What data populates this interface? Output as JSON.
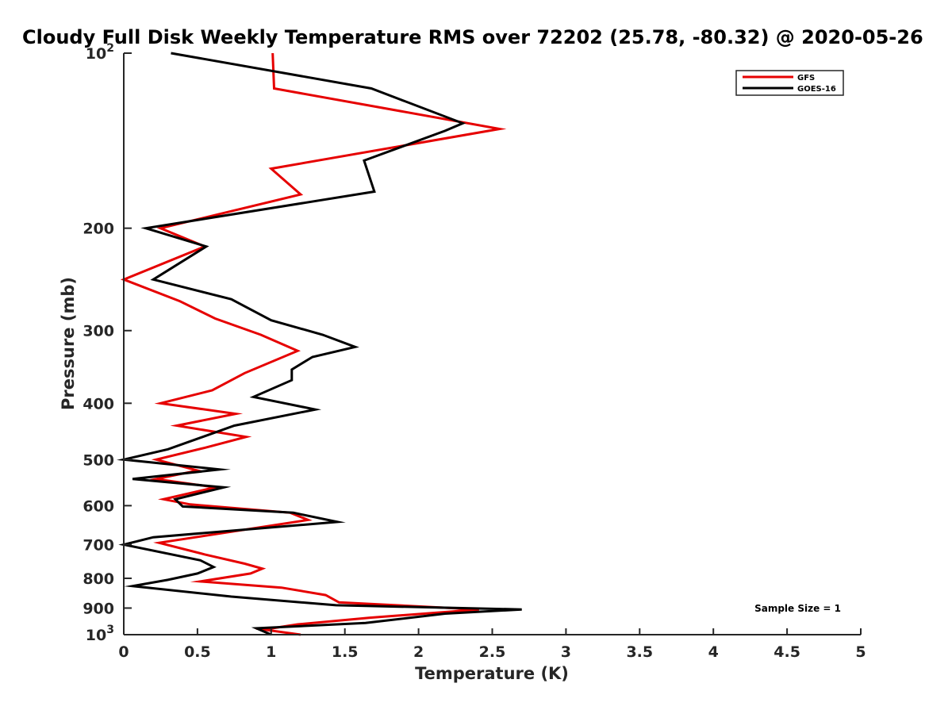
{
  "chart_data": {
    "type": "line",
    "title": "Cloudy Full Disk Weekly Temperature RMS over 72202 (25.78, -80.32) @ 2020-05-26",
    "xlabel": "Temperature (K)",
    "ylabel": "Pressure (mb)",
    "xlim": [
      0,
      5
    ],
    "ylim": [
      100,
      1000
    ],
    "y_scale": "log",
    "y_reversed": true,
    "grid": false,
    "legend_position": "top-right",
    "x_ticks": [
      "0",
      "0.5",
      "1",
      "1.5",
      "2",
      "2.5",
      "3",
      "3.5",
      "4",
      "4.5",
      "5"
    ],
    "y_ticks": [
      {
        "value": 100,
        "base": "10",
        "exp": "2"
      },
      {
        "value": 200,
        "label": "200"
      },
      {
        "value": 300,
        "label": "300"
      },
      {
        "value": 400,
        "label": "400"
      },
      {
        "value": 500,
        "label": "500"
      },
      {
        "value": 600,
        "label": "600"
      },
      {
        "value": 700,
        "label": "700"
      },
      {
        "value": 800,
        "label": "800"
      },
      {
        "value": 900,
        "label": "900"
      },
      {
        "value": 1000,
        "base": "10",
        "exp": "3"
      }
    ],
    "annotation": "Sample Size = 1",
    "series": [
      {
        "name": "GFS",
        "color": "#e60000",
        "points": [
          [
            1.01,
            100
          ],
          [
            1.02,
            115
          ],
          [
            2.55,
            135
          ],
          [
            1.0,
            158
          ],
          [
            1.2,
            175
          ],
          [
            0.25,
            200
          ],
          [
            0.55,
            215
          ],
          [
            0.0,
            245
          ],
          [
            0.38,
            267
          ],
          [
            0.62,
            286
          ],
          [
            0.93,
            305
          ],
          [
            1.18,
            325
          ],
          [
            0.82,
            355
          ],
          [
            0.6,
            380
          ],
          [
            0.25,
            400
          ],
          [
            0.76,
            417
          ],
          [
            0.36,
            437
          ],
          [
            0.83,
            457
          ],
          [
            0.55,
            477
          ],
          [
            0.22,
            500
          ],
          [
            0.5,
            522
          ],
          [
            0.22,
            540
          ],
          [
            0.62,
            558
          ],
          [
            0.27,
            585
          ],
          [
            0.45,
            597
          ],
          [
            1.13,
            617
          ],
          [
            1.25,
            635
          ],
          [
            0.24,
            695
          ],
          [
            0.55,
            728
          ],
          [
            0.82,
            755
          ],
          [
            0.94,
            770
          ],
          [
            0.86,
            785
          ],
          [
            0.52,
            810
          ],
          [
            1.07,
            830
          ],
          [
            1.37,
            855
          ],
          [
            1.46,
            880
          ],
          [
            2.41,
            905
          ],
          [
            1.67,
            935
          ],
          [
            1.18,
            960
          ],
          [
            0.95,
            980
          ],
          [
            1.2,
            1000
          ]
        ]
      },
      {
        "name": "GOES-16",
        "color": "#000000",
        "points": [
          [
            0.32,
            100
          ],
          [
            1.68,
            115
          ],
          [
            2.3,
            132
          ],
          [
            2.18,
            136
          ],
          [
            1.63,
            153
          ],
          [
            1.7,
            173
          ],
          [
            0.15,
            200
          ],
          [
            0.56,
            215
          ],
          [
            0.2,
            245
          ],
          [
            0.73,
            265
          ],
          [
            1.0,
            288
          ],
          [
            1.35,
            305
          ],
          [
            1.57,
            320
          ],
          [
            1.28,
            333
          ],
          [
            1.14,
            350
          ],
          [
            1.14,
            365
          ],
          [
            0.88,
            390
          ],
          [
            1.3,
            410
          ],
          [
            0.75,
            437
          ],
          [
            0.3,
            480
          ],
          [
            0.0,
            500
          ],
          [
            0.65,
            520
          ],
          [
            0.06,
            540
          ],
          [
            0.68,
            558
          ],
          [
            0.35,
            585
          ],
          [
            0.4,
            602
          ],
          [
            1.15,
            617
          ],
          [
            1.45,
            640
          ],
          [
            0.2,
            680
          ],
          [
            0.0,
            700
          ],
          [
            0.52,
            745
          ],
          [
            0.61,
            765
          ],
          [
            0.5,
            785
          ],
          [
            0.3,
            805
          ],
          [
            0.06,
            825
          ],
          [
            0.73,
            860
          ],
          [
            1.44,
            890
          ],
          [
            2.7,
            905
          ],
          [
            2.18,
            920
          ],
          [
            1.64,
            955
          ],
          [
            0.9,
            975
          ],
          [
            1.0,
            1000
          ]
        ]
      }
    ]
  }
}
